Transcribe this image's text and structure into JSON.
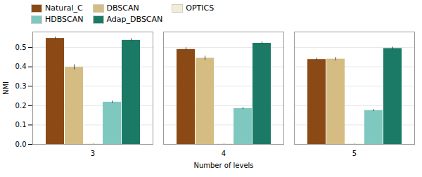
{
  "chart_data": {
    "type": "bar",
    "categories": [
      "3",
      "4",
      "5"
    ],
    "series": [
      {
        "name": "Natural_C",
        "color": "#8B4A15",
        "values": [
          0.547,
          0.49,
          0.438
        ],
        "errors": [
          0.007,
          0.009,
          0.007
        ]
      },
      {
        "name": "DBSCAN",
        "color": "#D4BC82",
        "values": [
          0.398,
          0.445,
          0.44
        ],
        "errors": [
          0.013,
          0.011,
          0.009
        ]
      },
      {
        "name": "OPTICS",
        "color": "#F2EDD4",
        "values": [
          0.003,
          0.003,
          0.003
        ],
        "errors": [
          0.001,
          0.001,
          0.001
        ]
      },
      {
        "name": "HDBSCAN",
        "color": "#7EC8C0",
        "values": [
          0.218,
          0.185,
          0.175
        ],
        "errors": [
          0.006,
          0.006,
          0.005
        ]
      },
      {
        "name": "Adap_DBSCAN",
        "color": "#1B7A65",
        "values": [
          0.537,
          0.522,
          0.495
        ],
        "errors": [
          0.009,
          0.007,
          0.007
        ]
      }
    ],
    "xlabel": "Number of levels",
    "ylabel": "NMI",
    "ylim": [
      0.0,
      0.58
    ],
    "yticks": [
      {
        "value": 0.0,
        "label": "0.0"
      },
      0.1,
      0.2,
      0.3,
      0.4,
      0.5
    ],
    "grid": true,
    "legend": "upper left"
  }
}
